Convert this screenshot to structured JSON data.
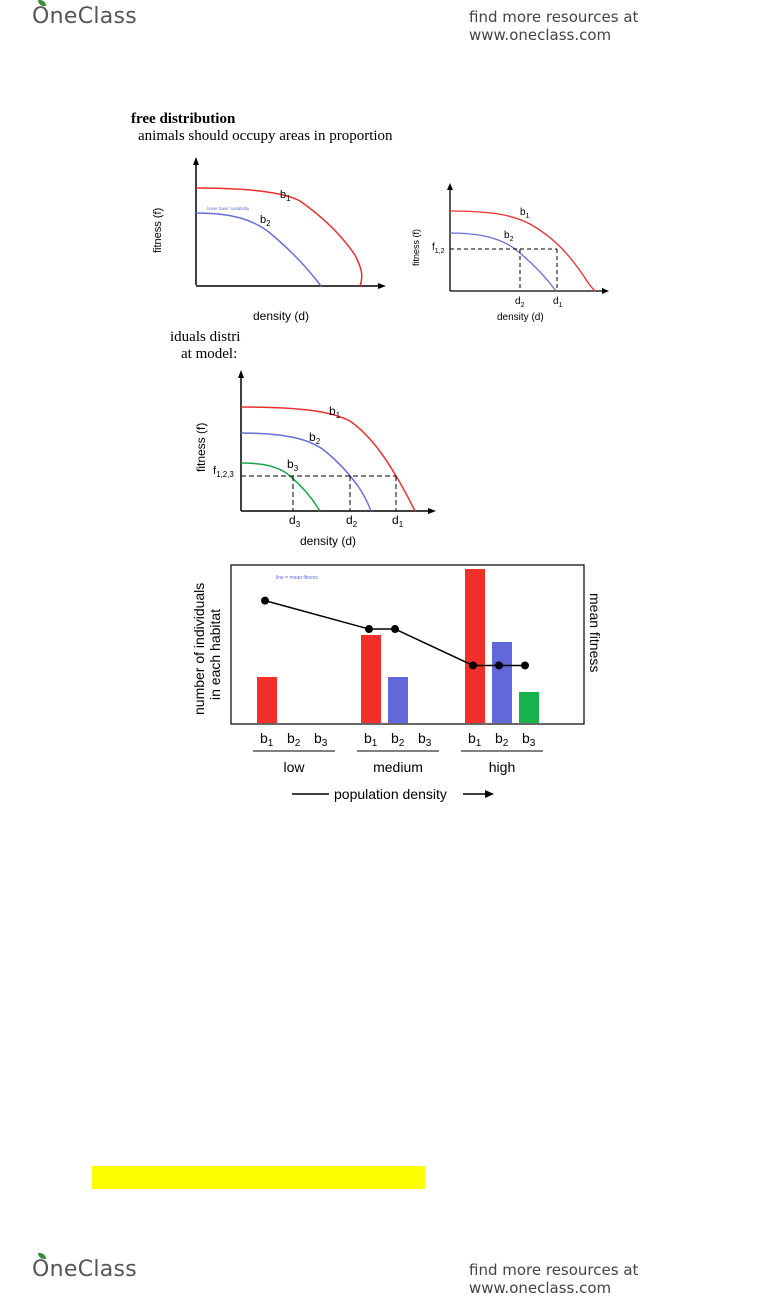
{
  "header": {
    "logo_text": "OneClass",
    "tagline": "find more resources at www.oneclass.com"
  },
  "footer": {
    "logo_text": "OneClass",
    "tagline": "find more resources at www.oneclass.com"
  },
  "doc": {
    "heading": "free distribution",
    "line1": "animals should occupy areas in proportion",
    "frag1": "iduals distri",
    "frag2": "at model:"
  },
  "fig1": {
    "ylabel": "fitness (f)",
    "xlabel": "density (d)",
    "b1_main": "b",
    "b1_sub": "1",
    "b2_main": "b",
    "b2_sub": "2",
    "note": "lower basic suitability",
    "colors": {
      "b1": "#e8312f",
      "b2": "#6670d8"
    }
  },
  "fig2": {
    "ylabel": "fitness (f)",
    "xlabel": "density (d)",
    "b1_main": "b",
    "b1_sub": "1",
    "b2_main": "b",
    "b2_sub": "2",
    "f_main": "f",
    "f_sub": "1,2",
    "d2_main": "d",
    "d2_sub": "2",
    "d1_main": "d",
    "d1_sub": "1"
  },
  "fig3": {
    "ylabel": "fitness (f)",
    "xlabel": "density (d)",
    "b1_main": "b",
    "b1_sub": "1",
    "b2_main": "b",
    "b2_sub": "2",
    "b3_main": "b",
    "b3_sub": "3",
    "f_main": "f",
    "f_sub": "1,2,3",
    "d3_main": "d",
    "d3_sub": "3",
    "d2_main": "d",
    "d2_sub": "2",
    "d1_main": "d",
    "d1_sub": "1",
    "colors": {
      "b1": "#e8312f",
      "b2": "#6670d8",
      "b3": "#1aa64a"
    }
  },
  "chart_data": {
    "type": "bar",
    "ylabel_line1": "number of individuals",
    "ylabel_line2": "in each habitat",
    "y2label": "mean fitness",
    "legend_note": "line = mean fitness",
    "xlabel": "population density",
    "groups": [
      {
        "name": "low",
        "bars": [
          {
            "label": "b",
            "sub": "1",
            "value": 46
          },
          {
            "label": "b",
            "sub": "2",
            "value": 0
          },
          {
            "label": "b",
            "sub": "3",
            "value": 0
          }
        ]
      },
      {
        "name": "medium",
        "bars": [
          {
            "label": "b",
            "sub": "1",
            "value": 88
          },
          {
            "label": "b",
            "sub": "2",
            "value": 46
          },
          {
            "label": "b",
            "sub": "3",
            "value": 0
          }
        ]
      },
      {
        "name": "high",
        "bars": [
          {
            "label": "b",
            "sub": "1",
            "value": 154
          },
          {
            "label": "b",
            "sub": "2",
            "value": 81
          },
          {
            "label": "b",
            "sub": "3",
            "value": 31
          }
        ]
      }
    ],
    "mean_fitness_points": [
      [
        0.0,
        0.9
      ],
      [
        1.0,
        0.65
      ],
      [
        1.25,
        0.65
      ],
      [
        2.0,
        0.33
      ],
      [
        2.25,
        0.33
      ],
      [
        2.5,
        0.33
      ]
    ],
    "colors": {
      "b1": "#f2302b",
      "b2": "#6268da",
      "b3": "#15b34a"
    }
  }
}
